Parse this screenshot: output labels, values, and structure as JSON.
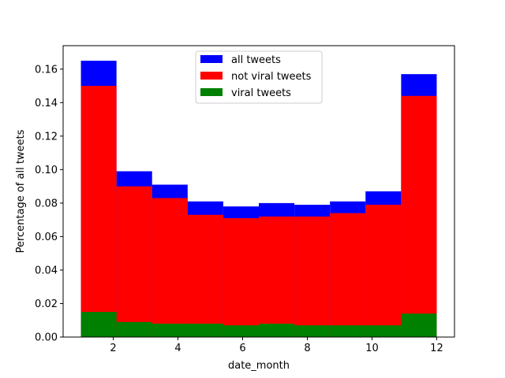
{
  "chart_data": {
    "type": "bar",
    "subtype": "histogram-overlay",
    "xlabel": "date_month",
    "ylabel": "Percentage of all tweets",
    "xlim": [
      0.45,
      12.55
    ],
    "ylim": [
      0,
      0.174
    ],
    "xticks": [
      2,
      4,
      6,
      8,
      10,
      12
    ],
    "yticks": [
      0.0,
      0.02,
      0.04,
      0.06,
      0.08,
      0.1,
      0.12,
      0.14,
      0.16
    ],
    "bin_edges": [
      1.0,
      2.1,
      3.2,
      4.3,
      5.4,
      6.5,
      7.6,
      8.7,
      9.8,
      10.9,
      12.0
    ],
    "legend_position": "upper center",
    "series": [
      {
        "name": "all tweets",
        "color": "#0000ff",
        "values": [
          0.165,
          0.099,
          0.091,
          0.081,
          0.078,
          0.08,
          0.079,
          0.081,
          0.087,
          0.157
        ]
      },
      {
        "name": "not viral tweets",
        "color": "#ff0000",
        "values": [
          0.15,
          0.09,
          0.083,
          0.073,
          0.071,
          0.072,
          0.072,
          0.074,
          0.079,
          0.144
        ]
      },
      {
        "name": "viral tweets",
        "color": "#008000",
        "values": [
          0.015,
          0.009,
          0.008,
          0.008,
          0.007,
          0.008,
          0.007,
          0.007,
          0.007,
          0.014
        ]
      }
    ]
  }
}
